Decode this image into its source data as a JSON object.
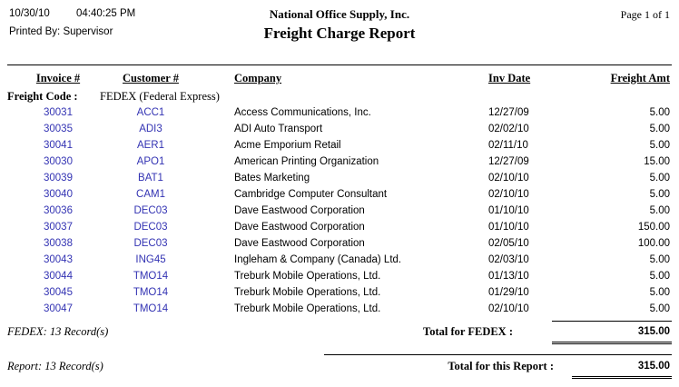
{
  "header": {
    "date": "10/30/10",
    "time": "04:40:25 PM",
    "printed_by": "Printed By: Supervisor",
    "company_name": "National Office Supply, Inc.",
    "report_title": "Freight Charge Report",
    "page_info": "Page 1 of 1"
  },
  "table": {
    "columns": {
      "invoice": "Invoice #",
      "customer": "Customer #",
      "company": "Company",
      "inv_date": "Inv Date",
      "freight_amt": "Freight Amt"
    },
    "group": {
      "label": "Freight Code :",
      "value": "FEDEX (Federal Express)"
    },
    "rows": [
      {
        "invoice": "30031",
        "customer": "ACC1",
        "company": "Access Communications, Inc.",
        "inv_date": "12/27/09",
        "amount": "5.00"
      },
      {
        "invoice": "30035",
        "customer": "ADI3",
        "company": "ADI Auto Transport",
        "inv_date": "02/02/10",
        "amount": "5.00"
      },
      {
        "invoice": "30041",
        "customer": "AER1",
        "company": "Acme Emporium Retail",
        "inv_date": "02/11/10",
        "amount": "5.00"
      },
      {
        "invoice": "30030",
        "customer": "APO1",
        "company": "American Printing Organization",
        "inv_date": "12/27/09",
        "amount": "15.00"
      },
      {
        "invoice": "30039",
        "customer": "BAT1",
        "company": "Bates Marketing",
        "inv_date": "02/10/10",
        "amount": "5.00"
      },
      {
        "invoice": "30040",
        "customer": "CAM1",
        "company": "Cambridge Computer Consultant",
        "inv_date": "02/10/10",
        "amount": "5.00"
      },
      {
        "invoice": "30036",
        "customer": "DEC03",
        "company": "Dave Eastwood Corporation",
        "inv_date": "01/10/10",
        "amount": "5.00"
      },
      {
        "invoice": "30037",
        "customer": "DEC03",
        "company": "Dave Eastwood Corporation",
        "inv_date": "01/10/10",
        "amount": "150.00"
      },
      {
        "invoice": "30038",
        "customer": "DEC03",
        "company": "Dave Eastwood Corporation",
        "inv_date": "02/05/10",
        "amount": "100.00"
      },
      {
        "invoice": "30043",
        "customer": "ING45",
        "company": "Ingleham & Company (Canada) Ltd.",
        "inv_date": "02/03/10",
        "amount": "5.00"
      },
      {
        "invoice": "30044",
        "customer": "TMO14",
        "company": "Treburk Mobile Operations, Ltd.",
        "inv_date": "01/13/10",
        "amount": "5.00"
      },
      {
        "invoice": "30045",
        "customer": "TMO14",
        "company": "Treburk Mobile Operations, Ltd.",
        "inv_date": "01/29/10",
        "amount": "5.00"
      },
      {
        "invoice": "30047",
        "customer": "TMO14",
        "company": "Treburk Mobile Operations, Ltd.",
        "inv_date": "02/10/10",
        "amount": "5.00"
      }
    ]
  },
  "totals": {
    "group_count": "FEDEX: 13 Record(s)",
    "group_total_label": "Total for FEDEX :",
    "group_total_amount": "315.00",
    "report_count": "Report: 13 Record(s)",
    "report_total_label": "Total for this Report :",
    "report_total_amount": "315.00"
  },
  "colors": {
    "link_blue": "#3333b3",
    "text": "#000000",
    "background": "#ffffff"
  }
}
